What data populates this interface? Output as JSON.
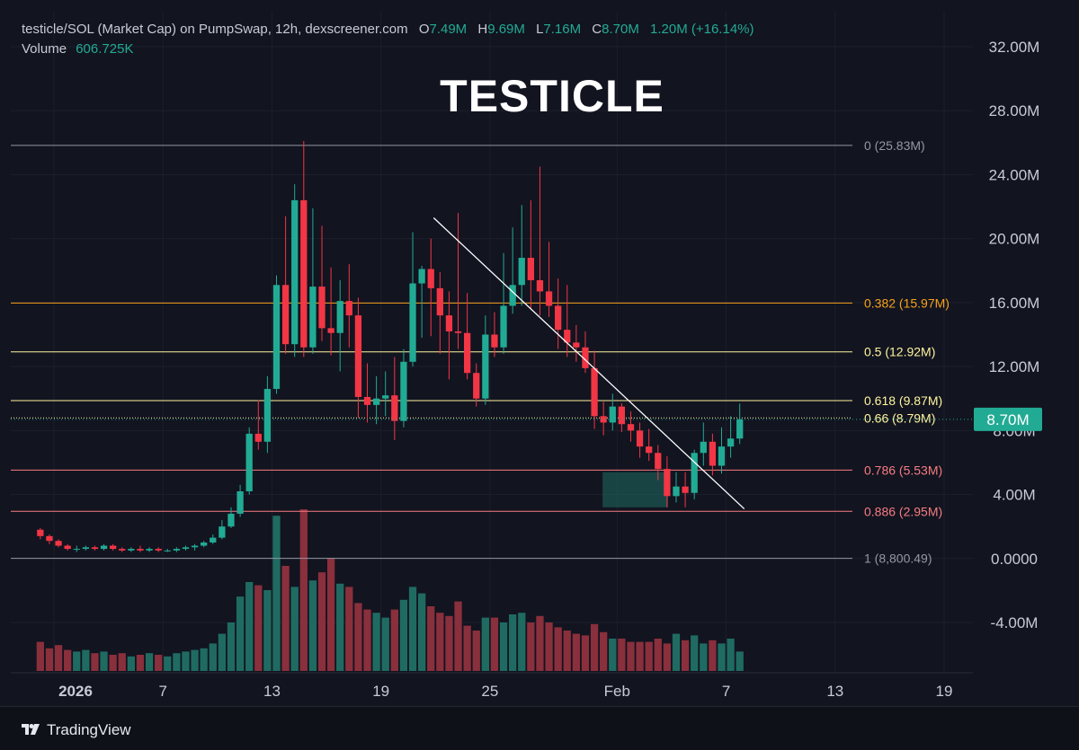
{
  "header": {
    "symbol": "testicle/SOL (Market Cap) on PumpSwap, 12h, dexscreener.com",
    "ohlc": [
      {
        "k": "O",
        "v": "7.49M"
      },
      {
        "k": "H",
        "v": "9.69M"
      },
      {
        "k": "L",
        "v": "7.16M"
      },
      {
        "k": "C",
        "v": "8.70M"
      }
    ],
    "change": "1.20M (+16.14%)",
    "volume_label": "Volume",
    "volume_value": "606.725K"
  },
  "title": "TESTICLE",
  "brand": "TradingView",
  "colors": {
    "bg": "#121420",
    "up": "#22ab94",
    "down": "#f23645",
    "vol_up": "#1f6b62",
    "vol_down": "#8a2f3c",
    "fib_0": "#9598a1",
    "fib_0382": "#f7a21b",
    "fib_05": "#fff59d",
    "fib_0618": "#fff59d",
    "fib_066": "#fff59d",
    "fib_0786": "#f77c80",
    "fib_0886": "#f77c80",
    "fib_1": "#9598a1",
    "trendline": "#ffffff",
    "price_badge": "#22ab94"
  },
  "chart_data": {
    "type": "candlestick",
    "title": "TESTICLE",
    "interval": "12h",
    "ylim": [
      -7.0,
      33.5
    ],
    "y_ticks": [
      {
        "v": 32,
        "label": "32.00M"
      },
      {
        "v": 28,
        "label": "28.00M"
      },
      {
        "v": 24,
        "label": "24.00M"
      },
      {
        "v": 20,
        "label": "20.00M"
      },
      {
        "v": 16,
        "label": "16.00M"
      },
      {
        "v": 12,
        "label": "12.00M"
      },
      {
        "v": 8,
        "label": "8.00M"
      },
      {
        "v": 4,
        "label": "4.00M"
      },
      {
        "v": 0,
        "label": "0.0000"
      },
      {
        "v": -4,
        "label": "-4.00M"
      }
    ],
    "x_ticks": [
      {
        "day": 1,
        "label": "2026"
      },
      {
        "day": 7,
        "label": "7"
      },
      {
        "day": 13,
        "label": "13"
      },
      {
        "day": 19,
        "label": "19"
      },
      {
        "day": 25,
        "label": "25"
      },
      {
        "day": 32,
        "label": "Feb"
      },
      {
        "day": 38,
        "label": "7"
      },
      {
        "day": 44,
        "label": "13"
      },
      {
        "day": 50,
        "label": "19"
      }
    ],
    "x_range_days": [
      0.0,
      54.1
    ],
    "fib_levels": [
      {
        "ratio": "0",
        "value": 25.83,
        "label": "0 (25.83M)"
      },
      {
        "ratio": "0.382",
        "value": 15.97,
        "label": "0.382 (15.97M)"
      },
      {
        "ratio": "0.5",
        "value": 12.92,
        "label": "0.5 (12.92M)"
      },
      {
        "ratio": "0.618",
        "value": 9.87,
        "label": "0.618 (9.87M)"
      },
      {
        "ratio": "0.66",
        "value": 8.79,
        "label": "0.66 (8.79M)"
      },
      {
        "ratio": "0.786",
        "value": 5.53,
        "label": "0.786 (5.53M)"
      },
      {
        "ratio": "0.886",
        "value": 2.95,
        "label": "0.886 (2.95M)"
      },
      {
        "ratio": "1",
        "value": 0.0088,
        "label": "1 (8,800.49)"
      }
    ],
    "last_price": {
      "value": 8.7,
      "label": "8.70M"
    },
    "trendline": {
      "from": {
        "day": 21.9,
        "value": 21.3
      },
      "to": {
        "day": 39.0,
        "value": 3.1
      }
    },
    "highlight_box": {
      "from_day": 31.2,
      "to_day": 34.8,
      "low": 3.2,
      "high": 5.4
    },
    "candle_start_day": 0.0,
    "candle_step_days": 0.5,
    "candles": [
      [
        1.8,
        1.9,
        1.2,
        1.4
      ],
      [
        1.4,
        1.5,
        0.9,
        1.1
      ],
      [
        1.1,
        1.2,
        0.7,
        0.8
      ],
      [
        0.8,
        0.9,
        0.5,
        0.6
      ],
      [
        0.6,
        0.8,
        0.4,
        0.6
      ],
      [
        0.6,
        0.8,
        0.5,
        0.7
      ],
      [
        0.7,
        0.8,
        0.5,
        0.6
      ],
      [
        0.6,
        0.9,
        0.5,
        0.8
      ],
      [
        0.8,
        0.9,
        0.5,
        0.6
      ],
      [
        0.6,
        0.7,
        0.4,
        0.5
      ],
      [
        0.5,
        0.7,
        0.4,
        0.6
      ],
      [
        0.6,
        0.8,
        0.4,
        0.5
      ],
      [
        0.5,
        0.7,
        0.4,
        0.6
      ],
      [
        0.6,
        0.7,
        0.4,
        0.5
      ],
      [
        0.5,
        0.6,
        0.4,
        0.5
      ],
      [
        0.5,
        0.7,
        0.4,
        0.6
      ],
      [
        0.6,
        0.8,
        0.5,
        0.7
      ],
      [
        0.7,
        0.9,
        0.5,
        0.8
      ],
      [
        0.8,
        1.1,
        0.7,
        1.0
      ],
      [
        1.0,
        1.5,
        0.9,
        1.3
      ],
      [
        1.3,
        2.4,
        1.2,
        2.0
      ],
      [
        2.0,
        3.2,
        1.9,
        2.8
      ],
      [
        2.8,
        4.6,
        2.6,
        4.2
      ],
      [
        4.2,
        8.2,
        4.0,
        7.8
      ],
      [
        7.8,
        9.9,
        6.8,
        7.3
      ],
      [
        7.3,
        11.4,
        6.6,
        10.6
      ],
      [
        10.6,
        17.7,
        10.3,
        17.1
      ],
      [
        17.1,
        21.4,
        12.8,
        13.4
      ],
      [
        13.4,
        23.4,
        12.6,
        22.4
      ],
      [
        22.4,
        26.1,
        12.6,
        13.2
      ],
      [
        13.2,
        21.9,
        12.8,
        17.0
      ],
      [
        17.0,
        20.8,
        13.6,
        14.4
      ],
      [
        14.4,
        18.2,
        12.7,
        14.1
      ],
      [
        14.1,
        17.4,
        11.7,
        16.1
      ],
      [
        16.1,
        18.4,
        13.2,
        15.2
      ],
      [
        15.2,
        16.3,
        8.8,
        10.1
      ],
      [
        10.1,
        12.2,
        8.5,
        9.6
      ],
      [
        9.6,
        11.4,
        8.4,
        10.0
      ],
      [
        10.0,
        11.7,
        8.9,
        10.2
      ],
      [
        10.2,
        12.6,
        7.4,
        8.6
      ],
      [
        8.6,
        13.1,
        8.2,
        12.3
      ],
      [
        12.3,
        20.4,
        12.0,
        17.2
      ],
      [
        17.2,
        18.3,
        13.8,
        18.1
      ],
      [
        18.1,
        20.0,
        13.9,
        16.9
      ],
      [
        16.9,
        17.9,
        12.8,
        15.2
      ],
      [
        15.2,
        16.7,
        11.2,
        14.2
      ],
      [
        14.2,
        21.6,
        13.1,
        14.1
      ],
      [
        14.1,
        16.6,
        11.2,
        11.6
      ],
      [
        11.6,
        12.2,
        9.5,
        10.0
      ],
      [
        10.0,
        15.2,
        9.6,
        14.0
      ],
      [
        14.0,
        15.4,
        12.6,
        13.2
      ],
      [
        13.2,
        19.1,
        12.8,
        15.8
      ],
      [
        15.8,
        20.7,
        15.3,
        17.1
      ],
      [
        17.1,
        22.1,
        15.8,
        18.8
      ],
      [
        18.8,
        22.4,
        15.6,
        17.4
      ],
      [
        17.4,
        24.5,
        15.2,
        16.7
      ],
      [
        16.7,
        19.8,
        15.1,
        15.8
      ],
      [
        15.8,
        17.5,
        13.1,
        14.3
      ],
      [
        14.3,
        17.1,
        12.6,
        13.5
      ],
      [
        13.5,
        14.6,
        12.3,
        13.2
      ],
      [
        13.2,
        14.2,
        11.6,
        11.9
      ],
      [
        11.9,
        13.0,
        8.1,
        8.9
      ],
      [
        8.9,
        9.8,
        7.7,
        8.5
      ],
      [
        8.5,
        10.3,
        8.0,
        9.5
      ],
      [
        9.5,
        9.7,
        7.9,
        8.4
      ],
      [
        8.4,
        9.2,
        7.3,
        8.0
      ],
      [
        8.0,
        8.5,
        6.3,
        7.0
      ],
      [
        7.0,
        8.1,
        6.1,
        6.6
      ],
      [
        6.6,
        7.1,
        4.9,
        5.6
      ],
      [
        5.6,
        6.4,
        3.2,
        3.9
      ],
      [
        3.9,
        5.4,
        3.5,
        4.5
      ],
      [
        4.5,
        5.4,
        3.2,
        4.1
      ],
      [
        4.1,
        6.8,
        3.7,
        6.6
      ],
      [
        6.6,
        8.5,
        5.8,
        7.3
      ],
      [
        7.3,
        7.8,
        5.2,
        5.8
      ],
      [
        5.8,
        8.2,
        5.3,
        7.0
      ],
      [
        7.0,
        8.9,
        6.3,
        7.5
      ],
      [
        7.5,
        9.69,
        7.16,
        8.7
      ]
    ],
    "volume_ylim": [
      0,
      1.0
    ],
    "volumes": [
      0.18,
      0.14,
      0.16,
      0.13,
      0.12,
      0.13,
      0.11,
      0.12,
      0.1,
      0.11,
      0.09,
      0.1,
      0.11,
      0.1,
      0.09,
      0.11,
      0.12,
      0.13,
      0.14,
      0.17,
      0.23,
      0.3,
      0.46,
      0.55,
      0.53,
      0.5,
      0.96,
      0.65,
      0.52,
      1.0,
      0.56,
      0.61,
      0.7,
      0.54,
      0.52,
      0.42,
      0.38,
      0.36,
      0.33,
      0.38,
      0.44,
      0.52,
      0.48,
      0.4,
      0.36,
      0.34,
      0.43,
      0.28,
      0.25,
      0.33,
      0.33,
      0.3,
      0.35,
      0.36,
      0.3,
      0.34,
      0.3,
      0.27,
      0.25,
      0.23,
      0.22,
      0.29,
      0.24,
      0.2,
      0.2,
      0.18,
      0.18,
      0.18,
      0.2,
      0.17,
      0.23,
      0.19,
      0.22,
      0.17,
      0.19,
      0.17,
      0.2,
      0.12
    ]
  }
}
